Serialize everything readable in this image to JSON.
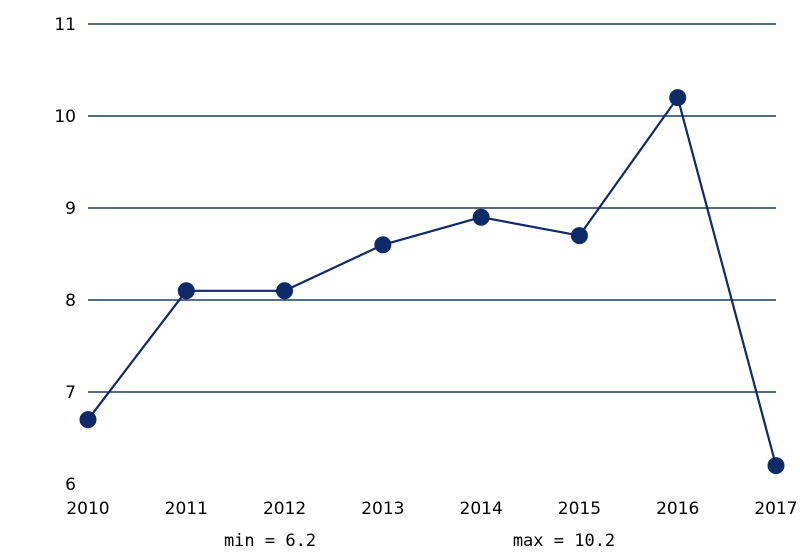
{
  "chart_data": {
    "type": "line",
    "title": "",
    "xlabel": "",
    "ylabel": "",
    "categories": [
      "2010",
      "2011",
      "2012",
      "2013",
      "2014",
      "2015",
      "2016",
      "2017"
    ],
    "series": [
      {
        "values": [
          6.7,
          8.1,
          8.1,
          8.6,
          8.9,
          8.7,
          10.2,
          6.2
        ]
      }
    ],
    "ylim": [
      6,
      11
    ],
    "yticks": [
      "6",
      "7",
      "8",
      "9",
      "10",
      "11"
    ],
    "grid": true,
    "line_color": "#0f2a68",
    "grid_color": "#1c3a63",
    "annotations": {
      "min_label": "min = 6.2",
      "max_label": "max = 10.2"
    }
  }
}
